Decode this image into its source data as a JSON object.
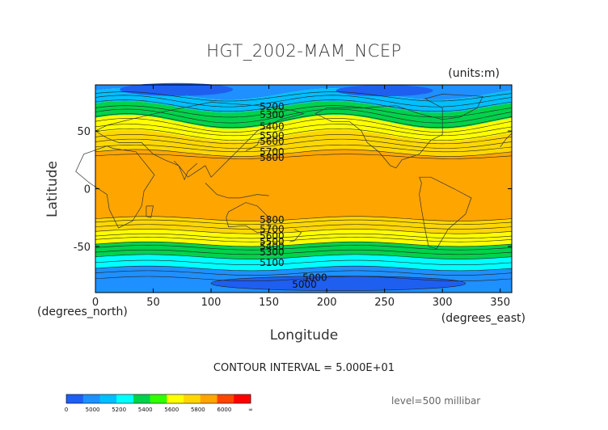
{
  "chart_data": {
    "type": "contour-map",
    "title": "HGT_2002-MAM_NCEP",
    "units": "(units:m)",
    "xlabel": "Longitude",
    "ylabel": "Latitude",
    "x_unit_label": "(degrees_east)",
    "y_unit_label": "(degrees_north)",
    "xlim": [
      0,
      360
    ],
    "ylim": [
      -90,
      90
    ],
    "x_ticks": [
      0,
      50,
      100,
      150,
      200,
      250,
      300,
      350
    ],
    "y_ticks": [
      50,
      0,
      -50
    ],
    "contour_interval_text": "CONTOUR INTERVAL = 5.000E+01",
    "level_text": "level=500 millibar",
    "contour_labels": [
      {
        "text": "5200",
        "lon": 142,
        "lat": 71
      },
      {
        "text": "5300",
        "lon": 142,
        "lat": 64
      },
      {
        "text": "5400",
        "lon": 142,
        "lat": 54
      },
      {
        "text": "5500",
        "lon": 142,
        "lat": 46
      },
      {
        "text": "5600",
        "lon": 142,
        "lat": 41
      },
      {
        "text": "5700",
        "lon": 142,
        "lat": 32
      },
      {
        "text": "5800",
        "lon": 142,
        "lat": 27
      },
      {
        "text": "5800",
        "lon": 142,
        "lat": -27
      },
      {
        "text": "5700",
        "lon": 142,
        "lat": -35
      },
      {
        "text": "5600",
        "lon": 142,
        "lat": -41
      },
      {
        "text": "5500",
        "lon": 142,
        "lat": -46
      },
      {
        "text": "5400",
        "lon": 142,
        "lat": -50
      },
      {
        "text": "5300",
        "lon": 142,
        "lat": -55
      },
      {
        "text": "5100",
        "lon": 142,
        "lat": -64
      },
      {
        "text": "5000",
        "lon": 179,
        "lat": -77
      },
      {
        "text": "5000",
        "lon": 170,
        "lat": -83
      }
    ],
    "colorbar": {
      "colors": [
        "#1e5ff0",
        "#1e90ff",
        "#00bfff",
        "#00ffff",
        "#00d24b",
        "#32ff00",
        "#ffff00",
        "#ffd700",
        "#ffa500",
        "#ff4500",
        "#ff0000"
      ],
      "tick_labels": [
        "0",
        "5000",
        "5200",
        "5400",
        "5600",
        "5800",
        "6000",
        "∞"
      ]
    }
  }
}
